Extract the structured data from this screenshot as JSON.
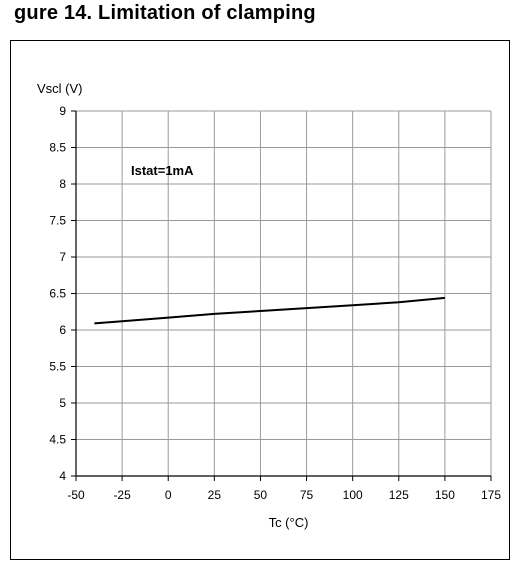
{
  "page": {
    "title": "gure 14. Limitation of clamping"
  },
  "chart_data": {
    "type": "line",
    "title": "",
    "ylabel": "Vscl (V)",
    "xlabel": "Tc (°C)",
    "xlim": [
      -50,
      175
    ],
    "ylim": [
      4,
      9
    ],
    "x_ticks": [
      "-50",
      "-25",
      "0",
      "25",
      "50",
      "75",
      "100",
      "125",
      "150",
      "175"
    ],
    "y_ticks": [
      "4",
      "4.5",
      "5",
      "5.5",
      "6",
      "6.5",
      "7",
      "7.5",
      "8",
      "8.5",
      "9"
    ],
    "grid": true,
    "annotation": "Istat=1mA",
    "series": [
      {
        "color": "#000000",
        "x": [
          -40,
          -25,
          0,
          25,
          50,
          75,
          100,
          125,
          150
        ],
        "y": [
          6.09,
          6.12,
          6.17,
          6.22,
          6.26,
          6.3,
          6.34,
          6.38,
          6.44
        ]
      }
    ]
  }
}
